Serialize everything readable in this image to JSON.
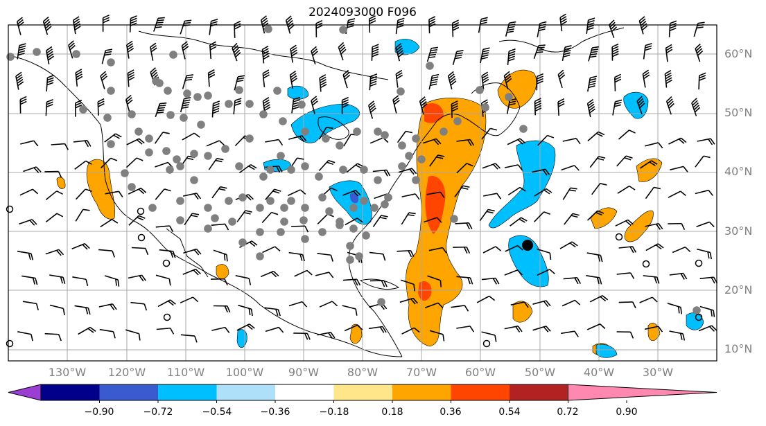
{
  "title": "2024093000 F096",
  "lat_labels": [
    "60°N",
    "50°N",
    "40°N",
    "30°N",
    "20°N",
    "10°N"
  ],
  "lon_labels": [
    "130°W",
    "120°W",
    "110°W",
    "100°W",
    "90°W",
    "80°W",
    "70°W",
    "60°W",
    "50°W",
    "40°W",
    "30°W"
  ],
  "colorbar": {
    "ticks": [
      "−0.90",
      "−0.72",
      "−0.54",
      "−0.36",
      "−0.18",
      "0.18",
      "0.36",
      "0.54",
      "0.72",
      "0.90"
    ],
    "colors": [
      "#9b3fd4",
      "#00008b",
      "#3a5bd0",
      "#00bfff",
      "#aee0fa",
      "#ffffff",
      "#ffe68a",
      "#ffa500",
      "#ff4500",
      "#b22222",
      "#ff88b0"
    ]
  },
  "field_colors": {
    "positive_light": "#ffe68a",
    "positive_mid": "#ffa500",
    "positive_strong": "#ff4500",
    "negative_light": "#aee0fa",
    "negative_mid": "#00bfff",
    "negative_strong": "#3a5bd0"
  },
  "marker_color": "#808080"
}
